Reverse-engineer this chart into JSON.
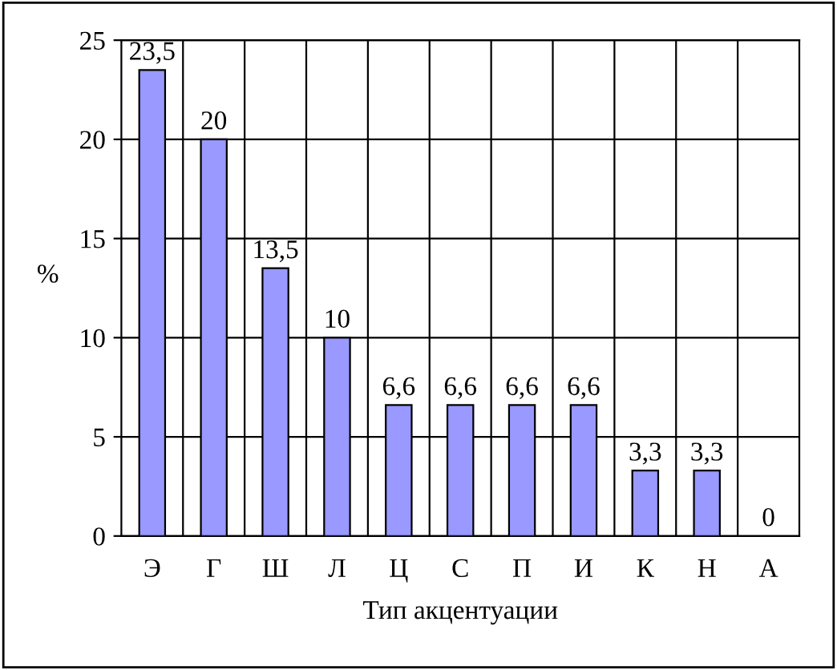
{
  "chart_data": {
    "type": "bar",
    "xlabel": "Тип акцентуации",
    "ylabel": "%",
    "categories": [
      "Э",
      "Г",
      "Ш",
      "Л",
      "Ц",
      "С",
      "П",
      "И",
      "К",
      "Н",
      "А"
    ],
    "values": [
      23.5,
      20,
      13.5,
      10,
      6.6,
      6.6,
      6.6,
      6.6,
      3.3,
      3.3,
      0
    ],
    "value_labels": [
      "23,5",
      "20",
      "13,5",
      "10",
      "6,6",
      "6,6",
      "6,6",
      "6,6",
      "3,3",
      "3,3",
      "0"
    ],
    "color": "#9999ff",
    "ylim": [
      0,
      25
    ],
    "yticks": [
      0,
      5,
      10,
      15,
      20,
      25
    ],
    "grid": true,
    "legend": false
  }
}
